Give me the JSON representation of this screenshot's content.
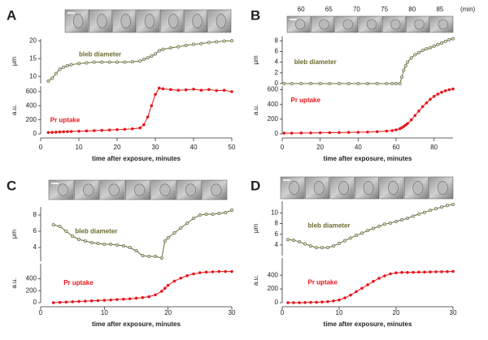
{
  "chart_data": [
    {
      "type": "line",
      "title": "A",
      "ylabel": "μm",
      "ylim": [
        8,
        20.5
      ],
      "yticks": [
        10,
        15,
        20
      ],
      "xlim": [
        0,
        50
      ],
      "x": [
        2,
        3,
        4,
        5,
        6,
        7,
        8,
        10,
        12,
        14,
        16,
        18,
        20,
        22,
        24,
        26,
        27,
        28,
        29,
        30,
        31,
        32,
        34,
        36,
        38,
        40,
        42,
        44,
        46,
        48,
        50
      ],
      "series": [
        {
          "name": "bleb diameter",
          "color": "#6b6b2e",
          "values": [
            8.7,
            9.5,
            10.8,
            12,
            12.6,
            13,
            13.3,
            13.6,
            13.8,
            14,
            14,
            14,
            14,
            14,
            14.1,
            14.3,
            14.8,
            15.2,
            15.7,
            16.3,
            17.2,
            17.6,
            18,
            18.3,
            18.7,
            19,
            19.2,
            19.5,
            19.7,
            19.9,
            20
          ]
        }
      ]
    },
    {
      "type": "line",
      "ylabel": "a.u.",
      "xlabel": "time after exposure, minutes",
      "ylim": [
        0,
        680
      ],
      "yticks": [
        0,
        200,
        400,
        600
      ],
      "xlim": [
        0,
        50
      ],
      "xticks": [
        0,
        10,
        20,
        30,
        40,
        50
      ],
      "x": [
        2,
        3,
        4,
        5,
        6,
        7,
        8,
        10,
        12,
        14,
        16,
        18,
        20,
        22,
        24,
        26,
        27,
        28,
        29,
        30,
        31,
        32,
        34,
        36,
        38,
        40,
        42,
        44,
        46,
        48,
        50
      ],
      "series": [
        {
          "name": "Pr uptake",
          "color": "#e8141a",
          "values": [
            20,
            22,
            25,
            28,
            30,
            32,
            34,
            38,
            42,
            46,
            50,
            55,
            60,
            65,
            72,
            85,
            130,
            240,
            400,
            560,
            650,
            640,
            630,
            620,
            625,
            635,
            620,
            630,
            615,
            620,
            600
          ]
        }
      ]
    },
    {
      "type": "line",
      "title": "B",
      "annotations": [
        "60",
        "65",
        "70",
        "75",
        "80",
        "85",
        "(min)"
      ],
      "ylabel": "μm",
      "ylim": [
        0,
        8.8
      ],
      "yticks": [
        0,
        2,
        4,
        6,
        8
      ],
      "xlim": [
        0,
        90
      ],
      "x": [
        1,
        5,
        10,
        15,
        20,
        25,
        30,
        35,
        40,
        45,
        50,
        55,
        58,
        60,
        62,
        63,
        64,
        65,
        66,
        68,
        70,
        72,
        74,
        76,
        78,
        80,
        82,
        84,
        86,
        88,
        90
      ],
      "series": [
        {
          "name": "bleb diameter",
          "color": "#6b6b2e",
          "values": [
            0,
            0,
            0,
            0,
            0,
            0,
            0,
            0,
            0,
            0,
            0,
            0,
            0,
            0,
            0,
            1.2,
            2.5,
            3.3,
            4,
            4.8,
            5.4,
            5.8,
            6.2,
            6.5,
            6.7,
            7,
            7.3,
            7.6,
            7.9,
            8.2,
            8.4
          ]
        }
      ]
    },
    {
      "type": "line",
      "ylabel": "a.u.",
      "xlabel": "time after exposure, minutes",
      "ylim": [
        0,
        650
      ],
      "yticks": [
        0,
        200,
        400,
        600
      ],
      "xlim": [
        0,
        90
      ],
      "xticks": [
        0,
        20,
        40,
        60,
        80
      ],
      "x": [
        1,
        5,
        10,
        15,
        20,
        25,
        30,
        35,
        40,
        45,
        50,
        55,
        58,
        60,
        62,
        63,
        64,
        65,
        66,
        68,
        70,
        72,
        74,
        76,
        78,
        80,
        82,
        84,
        86,
        88,
        90
      ],
      "series": [
        {
          "name": "Pr uptake",
          "color": "#e8141a",
          "values": [
            10,
            10,
            12,
            13,
            15,
            17,
            18,
            20,
            22,
            25,
            30,
            38,
            45,
            55,
            70,
            85,
            100,
            120,
            140,
            190,
            250,
            310,
            370,
            420,
            470,
            510,
            540,
            565,
            585,
            600,
            610
          ]
        }
      ]
    },
    {
      "type": "line",
      "title": "C",
      "ylabel": "μm",
      "ylim": [
        2.3,
        9
      ],
      "yticks": [
        4,
        6,
        8
      ],
      "xlim": [
        0,
        30
      ],
      "x": [
        2,
        3,
        4,
        5,
        6,
        7,
        8,
        9,
        10,
        11,
        12,
        13,
        14,
        15,
        16,
        17,
        18,
        19,
        19.5,
        20,
        21,
        22,
        23,
        24,
        25,
        26,
        27,
        28,
        29,
        30
      ],
      "series": [
        {
          "name": "bleb diameter",
          "color": "#6b6b2e",
          "values": [
            6.8,
            6.6,
            6,
            5.4,
            5,
            4.8,
            4.6,
            4.5,
            4.4,
            4.4,
            4.3,
            4.2,
            4,
            3.6,
            3,
            2.9,
            2.9,
            2.7,
            4.8,
            5.2,
            5.8,
            6.4,
            7,
            7.6,
            8,
            8.1,
            8.1,
            8.2,
            8.3,
            8.6
          ]
        }
      ]
    },
    {
      "type": "line",
      "ylabel": "a.u.",
      "xlabel": "time after exposure, minutes",
      "ylim": [
        0,
        650
      ],
      "yticks": [
        0,
        200,
        400
      ],
      "xlim": [
        0,
        30
      ],
      "xticks": [
        0,
        10,
        20,
        30
      ],
      "x": [
        2,
        3,
        4,
        5,
        6,
        7,
        8,
        9,
        10,
        11,
        12,
        13,
        14,
        15,
        16,
        17,
        18,
        19,
        19.5,
        20,
        21,
        22,
        23,
        24,
        25,
        26,
        27,
        28,
        29,
        30
      ],
      "series": [
        {
          "name": "Pr uptake",
          "color": "#e8141a",
          "values": [
            0,
            5,
            10,
            15,
            20,
            25,
            30,
            35,
            40,
            45,
            52,
            58,
            65,
            75,
            85,
            100,
            130,
            190,
            240,
            290,
            360,
            410,
            450,
            480,
            500,
            510,
            515,
            520,
            520,
            520
          ]
        }
      ]
    },
    {
      "type": "line",
      "title": "D",
      "ylabel": "μm",
      "ylim": [
        2,
        12.2
      ],
      "yticks": [
        4,
        6,
        8,
        10
      ],
      "xlim": [
        0,
        30
      ],
      "x": [
        1,
        2,
        3,
        4,
        5,
        6,
        7,
        8,
        9,
        10,
        11,
        12,
        13,
        14,
        15,
        16,
        17,
        18,
        19,
        20,
        21,
        22,
        23,
        24,
        25,
        26,
        27,
        28,
        29,
        30
      ],
      "series": [
        {
          "name": "bleb diameter",
          "color": "#6b6b2e",
          "values": [
            5,
            4.9,
            4.6,
            4.2,
            3.8,
            3.5,
            3.5,
            3.5,
            3.8,
            4.3,
            4.8,
            5.3,
            5.8,
            6.2,
            6.7,
            7.1,
            7.5,
            7.9,
            8.1,
            8.4,
            8.7,
            9,
            9.4,
            9.8,
            10.1,
            10.5,
            10.8,
            11.1,
            11.4,
            11.6
          ]
        }
      ]
    },
    {
      "type": "line",
      "ylabel": "a.u.",
      "xlabel": "time after exposure, minutes",
      "ylim": [
        0,
        650
      ],
      "yticks": [
        0,
        200,
        400
      ],
      "xlim": [
        0,
        30
      ],
      "xticks": [
        0,
        10,
        20,
        30
      ],
      "x": [
        1,
        2,
        3,
        4,
        5,
        6,
        7,
        8,
        9,
        10,
        11,
        12,
        13,
        14,
        15,
        16,
        17,
        18,
        19,
        20,
        21,
        22,
        23,
        24,
        25,
        26,
        27,
        28,
        29,
        30
      ],
      "series": [
        {
          "name": "Pr uptake",
          "color": "#e8141a",
          "values": [
            0,
            0,
            0,
            2,
            4,
            6,
            10,
            15,
            25,
            40,
            70,
            110,
            160,
            210,
            260,
            310,
            355,
            390,
            420,
            435,
            440,
            440,
            442,
            445,
            445,
            448,
            450,
            450,
            452,
            455
          ]
        }
      ]
    }
  ]
}
